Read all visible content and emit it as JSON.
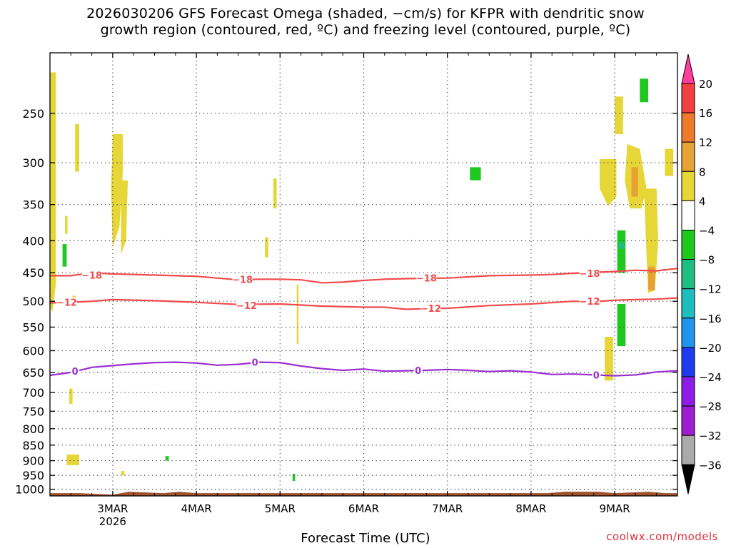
{
  "title_line1": "2026030206 GFS Forecast Omega (shaded, −cm/s) for KFPR with dendritic snow",
  "title_line2": "growth region (contoured, red, ºC) and freezing level (contoured, purple, ºC)",
  "credit": "coolwx.com/models",
  "chart_data": {
    "type": "contour-time-height",
    "title": "2026030206 GFS Forecast Omega (shaded, −cm/s) for KFPR with dendritic snow growth region (contoured, red, ºC) and freezing level (contoured, purple, ºC)",
    "xlabel": "Forecast Time (UTC)",
    "ylabel": "",
    "x_ticks": [
      "3MAR",
      "4MAR",
      "5MAR",
      "6MAR",
      "7MAR",
      "8MAR",
      "9MAR"
    ],
    "x_tick_year": "2026",
    "xlim_days": [
      2.25,
      9.75
    ],
    "y_ticks": [
      250,
      300,
      350,
      400,
      450,
      500,
      550,
      600,
      650,
      700,
      750,
      800,
      850,
      900,
      950,
      1000
    ],
    "ylim_hpa": [
      1025,
      200
    ],
    "y_log": true,
    "grid": true,
    "colorbar": {
      "levels": [
        "20",
        "16",
        "12",
        "8",
        "4",
        "−4",
        "−8",
        "−12",
        "−16",
        "−20",
        "−24",
        "−28",
        "−32",
        "−36"
      ],
      "colors": [
        "#ff3fa0",
        "#f24040",
        "#ee7a2c",
        "#e6a232",
        "#e6d638",
        "#ffffff",
        "#1ec81e",
        "#1ebe82",
        "#1ebebe",
        "#1e96ee",
        "#1e3cee",
        "#8c1ee6",
        "#a01ed2",
        "#aaaaaa",
        "#000000"
      ]
    },
    "contours": [
      {
        "name": "-18",
        "color": "#f24a4a",
        "points": [
          [
            2.25,
            455
          ],
          [
            2.5,
            455
          ],
          [
            2.75,
            450
          ],
          [
            3,
            452
          ],
          [
            3.5,
            454
          ],
          [
            4,
            456
          ],
          [
            4.25,
            459
          ],
          [
            4.5,
            462
          ],
          [
            4.75,
            461
          ],
          [
            5,
            461
          ],
          [
            5.25,
            462
          ],
          [
            5.5,
            467
          ],
          [
            5.75,
            466
          ],
          [
            6,
            463
          ],
          [
            6.25,
            461
          ],
          [
            6.5,
            460
          ],
          [
            7,
            459
          ],
          [
            7.5,
            455
          ],
          [
            8,
            454
          ],
          [
            8.25,
            453
          ],
          [
            8.5,
            451
          ],
          [
            9,
            448
          ],
          [
            9.25,
            446
          ],
          [
            9.5,
            447
          ],
          [
            9.75,
            443
          ]
        ],
        "labels": [
          [
            2.75,
            454
          ],
          [
            4.55,
            461
          ],
          [
            6.75,
            459
          ],
          [
            8.7,
            451
          ]
        ]
      },
      {
        "name": "-12",
        "color": "#f24a4a",
        "points": [
          [
            2.25,
            503
          ],
          [
            2.5,
            502
          ],
          [
            2.75,
            500
          ],
          [
            3,
            497
          ],
          [
            3.5,
            499
          ],
          [
            4,
            502
          ],
          [
            4.5,
            506
          ],
          [
            5,
            505
          ],
          [
            5.25,
            507
          ],
          [
            5.5,
            509
          ],
          [
            6,
            511
          ],
          [
            6.25,
            511
          ],
          [
            6.5,
            515
          ],
          [
            6.75,
            514
          ],
          [
            7,
            513
          ],
          [
            7.5,
            508
          ],
          [
            8,
            505
          ],
          [
            8.5,
            500
          ],
          [
            8.75,
            501
          ],
          [
            9,
            498
          ],
          [
            9.25,
            497
          ],
          [
            9.5,
            496
          ],
          [
            9.75,
            494
          ]
        ],
        "labels": [
          [
            2.45,
            502
          ],
          [
            4.6,
            508
          ],
          [
            6.8,
            513
          ],
          [
            8.7,
            500
          ]
        ]
      },
      {
        "name": "0",
        "color": "#9a2fd0",
        "points": [
          [
            2.25,
            657
          ],
          [
            2.5,
            650
          ],
          [
            2.75,
            638
          ],
          [
            3,
            634
          ],
          [
            3.25,
            630
          ],
          [
            3.5,
            627
          ],
          [
            3.75,
            626
          ],
          [
            4,
            628
          ],
          [
            4.25,
            633
          ],
          [
            4.5,
            631
          ],
          [
            4.75,
            626
          ],
          [
            5,
            627
          ],
          [
            5.25,
            635
          ],
          [
            5.5,
            641
          ],
          [
            5.75,
            645
          ],
          [
            6,
            642
          ],
          [
            6.25,
            647
          ],
          [
            6.5,
            646
          ],
          [
            6.75,
            645
          ],
          [
            7,
            643
          ],
          [
            7.25,
            645
          ],
          [
            7.5,
            648
          ],
          [
            7.75,
            646
          ],
          [
            8,
            649
          ],
          [
            8.25,
            655
          ],
          [
            8.5,
            654
          ],
          [
            8.75,
            656
          ],
          [
            9,
            658
          ],
          [
            9.25,
            656
          ],
          [
            9.5,
            649
          ],
          [
            9.75,
            646
          ]
        ],
        "labels": [
          [
            2.55,
            647
          ],
          [
            4.7,
            626
          ],
          [
            6.65,
            645
          ],
          [
            8.78,
            656
          ]
        ]
      }
    ],
    "shaded_regions": [
      {
        "level": "4",
        "polygon": [
          [
            3.0,
            270
          ],
          [
            3.12,
            270
          ],
          [
            3.12,
            310
          ],
          [
            3.08,
            380
          ],
          [
            3.0,
            410
          ],
          [
            2.98,
            330
          ]
        ]
      },
      {
        "level": "4",
        "polygon": [
          [
            3.1,
            320
          ],
          [
            3.18,
            320
          ],
          [
            3.16,
            400
          ],
          [
            3.1,
            420
          ]
        ]
      },
      {
        "level": "4",
        "polygon": [
          [
            2.25,
            215
          ],
          [
            2.32,
            215
          ],
          [
            2.32,
            470
          ],
          [
            2.28,
            520
          ],
          [
            2.25,
            510
          ]
        ]
      },
      {
        "level": "4",
        "polygon": [
          [
            2.55,
            260
          ],
          [
            2.6,
            260
          ],
          [
            2.6,
            310
          ],
          [
            2.55,
            310
          ]
        ]
      },
      {
        "level": "4",
        "polygon": [
          [
            2.43,
            365
          ],
          [
            2.46,
            365
          ],
          [
            2.46,
            390
          ],
          [
            2.43,
            390
          ]
        ]
      },
      {
        "level": "4",
        "polygon": [
          [
            2.52,
            490
          ],
          [
            2.56,
            490
          ],
          [
            2.56,
            510
          ],
          [
            2.52,
            510
          ]
        ]
      },
      {
        "level": "4",
        "polygon": [
          [
            4.92,
            318
          ],
          [
            4.96,
            318
          ],
          [
            4.96,
            355
          ],
          [
            4.92,
            355
          ]
        ]
      },
      {
        "level": "4",
        "polygon": [
          [
            4.82,
            395
          ],
          [
            4.86,
            395
          ],
          [
            4.86,
            425
          ],
          [
            4.82,
            425
          ]
        ]
      },
      {
        "level": "4",
        "polygon": [
          [
            5.2,
            470
          ],
          [
            5.22,
            470
          ],
          [
            5.22,
            585
          ],
          [
            5.2,
            585
          ]
        ]
      },
      {
        "level": "4",
        "polygon": [
          [
            2.48,
            690
          ],
          [
            2.52,
            690
          ],
          [
            2.52,
            730
          ],
          [
            2.48,
            730
          ]
        ]
      },
      {
        "level": "4",
        "polygon": [
          [
            2.45,
            880
          ],
          [
            2.6,
            880
          ],
          [
            2.6,
            915
          ],
          [
            2.45,
            915
          ]
        ]
      },
      {
        "level": "4",
        "polygon": [
          [
            3.1,
            935
          ],
          [
            3.14,
            935
          ],
          [
            3.14,
            950
          ],
          [
            3.1,
            950
          ]
        ]
      },
      {
        "level": "4",
        "polygon": [
          [
            8.82,
            296
          ],
          [
            9.02,
            296
          ],
          [
            9.02,
            340
          ],
          [
            8.92,
            352
          ],
          [
            8.82,
            330
          ]
        ]
      },
      {
        "level": "4",
        "polygon": [
          [
            9.0,
            235
          ],
          [
            9.1,
            235
          ],
          [
            9.1,
            270
          ],
          [
            9.0,
            270
          ]
        ]
      },
      {
        "level": "4",
        "polygon": [
          [
            9.15,
            280
          ],
          [
            9.3,
            285
          ],
          [
            9.38,
            330
          ],
          [
            9.32,
            355
          ],
          [
            9.18,
            355
          ],
          [
            9.12,
            320
          ]
        ]
      },
      {
        "level": "4",
        "polygon": [
          [
            9.35,
            330
          ],
          [
            9.5,
            330
          ],
          [
            9.52,
            400
          ],
          [
            9.48,
            480
          ],
          [
            9.4,
            485
          ],
          [
            9.38,
            420
          ]
        ]
      },
      {
        "level": "4",
        "polygon": [
          [
            9.6,
            285
          ],
          [
            9.7,
            285
          ],
          [
            9.7,
            315
          ],
          [
            9.6,
            315
          ]
        ]
      },
      {
        "level": "4",
        "polygon": [
          [
            8.88,
            570
          ],
          [
            8.98,
            570
          ],
          [
            8.98,
            670
          ],
          [
            8.88,
            670
          ]
        ]
      },
      {
        "level": "8",
        "polygon": [
          [
            9.2,
            305
          ],
          [
            9.28,
            305
          ],
          [
            9.28,
            340
          ],
          [
            9.2,
            340
          ]
        ]
      },
      {
        "level": "8",
        "polygon": [
          [
            9.4,
            440
          ],
          [
            9.48,
            440
          ],
          [
            9.48,
            480
          ],
          [
            9.4,
            480
          ]
        ]
      },
      {
        "level": "−4",
        "polygon": [
          [
            2.4,
            405
          ],
          [
            2.45,
            405
          ],
          [
            2.45,
            440
          ],
          [
            2.4,
            440
          ]
        ]
      },
      {
        "level": "−4",
        "polygon": [
          [
            7.27,
            305
          ],
          [
            7.4,
            305
          ],
          [
            7.4,
            320
          ],
          [
            7.27,
            320
          ]
        ]
      },
      {
        "level": "−4",
        "polygon": [
          [
            9.03,
            385
          ],
          [
            9.13,
            385
          ],
          [
            9.13,
            450
          ],
          [
            9.03,
            450
          ]
        ]
      },
      {
        "level": "−4",
        "polygon": [
          [
            9.03,
            505
          ],
          [
            9.13,
            505
          ],
          [
            9.13,
            590
          ],
          [
            9.03,
            590
          ]
        ]
      },
      {
        "level": "−4",
        "polygon": [
          [
            9.3,
            220
          ],
          [
            9.4,
            220
          ],
          [
            9.4,
            240
          ],
          [
            9.3,
            240
          ]
        ]
      },
      {
        "level": "−4",
        "polygon": [
          [
            3.63,
            885
          ],
          [
            3.67,
            885
          ],
          [
            3.67,
            900
          ],
          [
            3.63,
            900
          ]
        ]
      },
      {
        "level": "−4",
        "polygon": [
          [
            5.15,
            945
          ],
          [
            5.18,
            945
          ],
          [
            5.18,
            970
          ],
          [
            5.15,
            970
          ]
        ]
      },
      {
        "level": "−8",
        "polygon": [
          [
            9.05,
            402
          ],
          [
            9.12,
            402
          ],
          [
            9.12,
            412
          ],
          [
            9.05,
            412
          ]
        ]
      }
    ],
    "terrain": {
      "color": "#a0522d",
      "top_hpa": 1012
    }
  }
}
